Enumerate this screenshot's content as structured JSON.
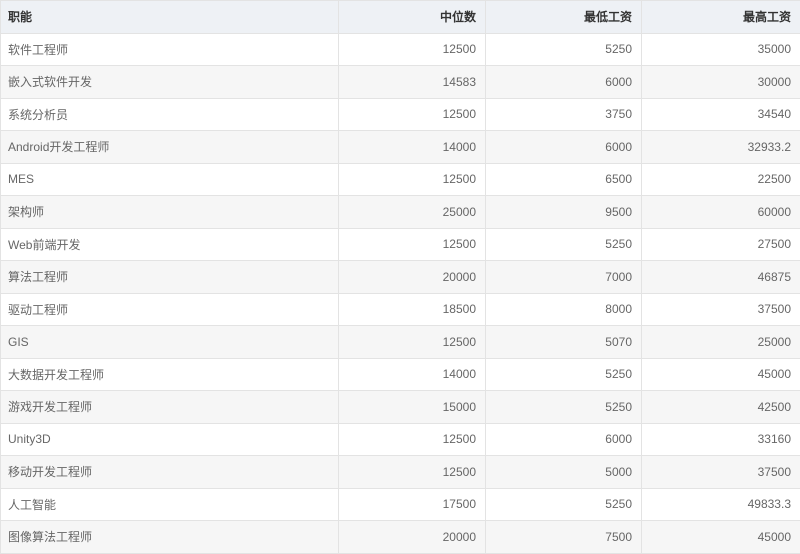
{
  "table": {
    "headers": [
      "职能",
      "中位数",
      "最低工资",
      "最高工资"
    ],
    "rows": [
      [
        "软件工程师",
        "12500",
        "5250",
        "35000"
      ],
      [
        "嵌入式软件开发",
        "14583",
        "6000",
        "30000"
      ],
      [
        "系统分析员",
        "12500",
        "3750",
        "34540"
      ],
      [
        "Android开发工程师",
        "14000",
        "6000",
        "32933.2"
      ],
      [
        "MES",
        "12500",
        "6500",
        "22500"
      ],
      [
        "架构师",
        "25000",
        "9500",
        "60000"
      ],
      [
        "Web前端开发",
        "12500",
        "5250",
        "27500"
      ],
      [
        "算法工程师",
        "20000",
        "7000",
        "46875"
      ],
      [
        "驱动工程师",
        "18500",
        "8000",
        "37500"
      ],
      [
        "GIS",
        "12500",
        "5070",
        "25000"
      ],
      [
        "大数据开发工程师",
        "14000",
        "5250",
        "45000"
      ],
      [
        "游戏开发工程师",
        "15000",
        "5250",
        "42500"
      ],
      [
        "Unity3D",
        "12500",
        "6000",
        "33160"
      ],
      [
        "移动开发工程师",
        "12500",
        "5000",
        "37500"
      ],
      [
        "人工智能",
        "17500",
        "5250",
        "49833.3"
      ],
      [
        "图像算法工程师",
        "20000",
        "7500",
        "45000"
      ]
    ]
  },
  "colors": {
    "header_bg": "#eef1f5",
    "stripe_bg": "#f6f6f6",
    "border": "#e3e3e3"
  }
}
